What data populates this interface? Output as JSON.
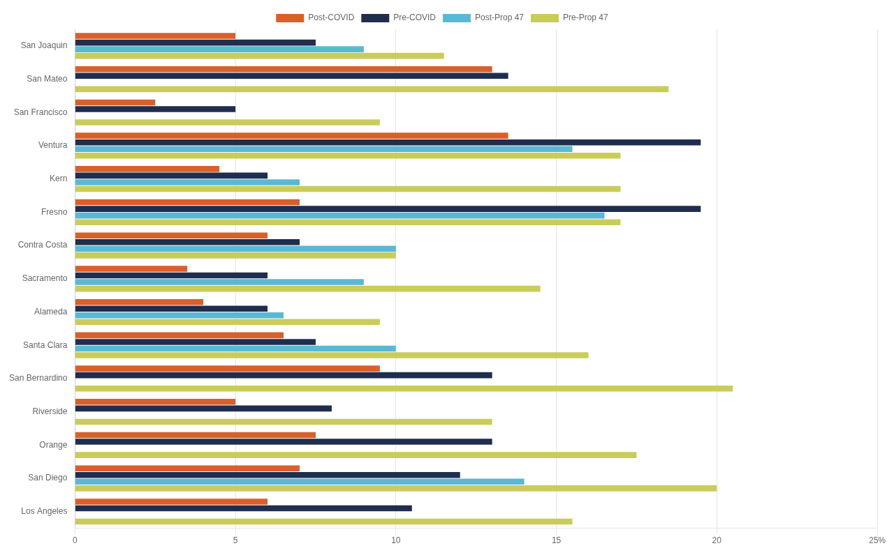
{
  "chart_data": {
    "type": "bar",
    "orientation": "horizontal",
    "categories": [
      "Los Angeles",
      "San Diego",
      "Orange",
      "Riverside",
      "San Bernardino",
      "Santa Clara",
      "Alameda",
      "Sacramento",
      "Contra Costa",
      "Fresno",
      "Kern",
      "Ventura",
      "San Francisco",
      "San Mateo",
      "San Joaquin"
    ],
    "series": [
      {
        "name": "Post-COVID",
        "color": "#d95f2b",
        "values": [
          6.0,
          7.0,
          7.5,
          5.0,
          9.5,
          6.5,
          4.0,
          3.5,
          6.0,
          7.0,
          4.5,
          13.5,
          2.5,
          13.0,
          5.0
        ]
      },
      {
        "name": "Pre-COVID",
        "color": "#1f2d4e",
        "values": [
          10.5,
          12.0,
          13.0,
          8.0,
          13.0,
          7.5,
          6.0,
          6.0,
          7.0,
          19.5,
          6.0,
          19.5,
          5.0,
          13.5,
          7.5
        ]
      },
      {
        "name": "Post-Prop 47",
        "color": "#5bb8d4",
        "values": [
          null,
          14.0,
          null,
          null,
          null,
          10.0,
          6.5,
          9.0,
          10.0,
          16.5,
          7.0,
          15.5,
          null,
          null,
          9.0
        ]
      },
      {
        "name": "Pre-Prop 47",
        "color": "#c9cc5a",
        "values": [
          15.5,
          20.0,
          17.5,
          13.0,
          20.5,
          16.0,
          9.5,
          14.5,
          10.0,
          17.0,
          17.0,
          17.0,
          9.5,
          18.5,
          11.5
        ]
      }
    ],
    "xlim": [
      0,
      25
    ],
    "xticks": [
      0,
      5,
      10,
      15,
      20,
      {
        "value": 25,
        "label": "25%"
      }
    ],
    "grid": "x",
    "legend": "top"
  }
}
